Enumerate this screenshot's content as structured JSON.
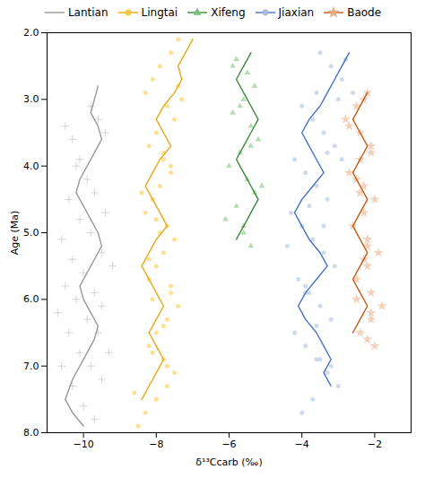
{
  "chart_data": {
    "type": "scatter",
    "xlabel": "δ¹³Ccarb (‰)",
    "ylabel": "Age (Ma)",
    "xlim": [
      -11.0,
      -1.0
    ],
    "ylim": [
      8.0,
      2.0
    ],
    "xticks": [
      -10,
      -8,
      -6,
      -4,
      -2
    ],
    "yticks": [
      2,
      3,
      4,
      5,
      6,
      7,
      8
    ],
    "grid": false,
    "legend": "top",
    "series": [
      {
        "name": "Lantian",
        "type": "scatter",
        "color": "#bbbbbb",
        "marker": "+",
        "x": [
          -10.5,
          -10.3,
          -10.1,
          -9.8,
          -9.6,
          -9.4,
          -10.2,
          -9.9,
          -9.7,
          -9.4,
          -10.4,
          -10.1,
          -9.8,
          -9.5,
          -9.2,
          -10.6,
          -10.3,
          -10.0,
          -9.7,
          -9.5,
          -10.5,
          -10.2,
          -9.9,
          -9.6,
          -9.3,
          -10.7,
          -10.4,
          -10.1,
          -9.8,
          -9.5,
          -10.6,
          -10.3,
          -10.0,
          -9.7
        ],
        "values": [
          3.4,
          3.6,
          3.9,
          3.1,
          3.3,
          3.5,
          4.0,
          4.2,
          4.4,
          4.7,
          4.5,
          4.8,
          5.0,
          5.3,
          5.5,
          5.1,
          5.4,
          5.6,
          5.9,
          6.1,
          5.8,
          6.0,
          6.3,
          6.5,
          6.8,
          6.2,
          6.5,
          6.8,
          7.0,
          7.2,
          7.0,
          7.3,
          7.6,
          7.8
        ]
      },
      {
        "name": "Lantian",
        "type": "line",
        "color": "#999999",
        "x": [
          -9.6,
          -9.7,
          -9.8,
          -9.6,
          -9.5,
          -9.7,
          -9.9,
          -10.1,
          -10.2,
          -10.0,
          -9.8,
          -9.6,
          -9.5,
          -9.7,
          -9.9,
          -10.1,
          -10.0,
          -9.8,
          -9.6,
          -9.7,
          -9.9,
          -10.1,
          -10.3,
          -10.5,
          -10.3,
          -10.0
        ],
        "values": [
          2.8,
          3.0,
          3.2,
          3.4,
          3.6,
          3.8,
          4.0,
          4.2,
          4.4,
          4.6,
          4.8,
          5.0,
          5.2,
          5.4,
          5.6,
          5.8,
          6.0,
          6.2,
          6.4,
          6.6,
          6.8,
          7.0,
          7.2,
          7.5,
          7.7,
          7.9
        ]
      },
      {
        "name": "Lingtai",
        "type": "scatter",
        "color": "#f5c842",
        "marker": "o",
        "x": [
          -7.4,
          -7.6,
          -7.9,
          -8.1,
          -8.3,
          -7.7,
          -7.5,
          -8.0,
          -8.2,
          -7.8,
          -7.6,
          -7.9,
          -8.1,
          -8.3,
          -7.7,
          -7.5,
          -7.8,
          -8.0,
          -8.2,
          -7.6,
          -7.4,
          -7.7,
          -8.0,
          -8.2,
          -7.8,
          -7.5,
          -7.7,
          -8.0,
          -8.3,
          -8.5,
          -7.3,
          -7.6,
          -7.9,
          -8.1,
          -7.7,
          -8.4,
          -8.2,
          -7.8,
          -8.6,
          -7.4,
          -7.8,
          -8.0,
          -7.6,
          -8.1
        ],
        "values": [
          2.1,
          2.3,
          2.5,
          2.7,
          2.9,
          3.1,
          3.3,
          3.5,
          3.7,
          3.9,
          4.1,
          4.3,
          4.5,
          4.7,
          4.9,
          5.1,
          5.3,
          5.5,
          5.7,
          5.9,
          6.1,
          6.3,
          6.5,
          6.7,
          6.9,
          7.1,
          7.3,
          7.5,
          7.7,
          7.9,
          3.0,
          4.0,
          5.0,
          6.0,
          7.0,
          4.4,
          5.4,
          6.4,
          7.4,
          2.8,
          3.8,
          4.8,
          5.8,
          6.8
        ]
      },
      {
        "name": "Lingtai",
        "type": "line",
        "color": "#e6a817",
        "x": [
          -7.0,
          -7.2,
          -7.4,
          -7.3,
          -7.5,
          -7.8,
          -8.0,
          -7.8,
          -7.6,
          -7.9,
          -8.1,
          -8.3,
          -8.1,
          -7.9,
          -7.7,
          -8.0,
          -8.2,
          -8.4,
          -8.2,
          -8.0,
          -7.8,
          -8.0,
          -8.2,
          -8.0,
          -7.8,
          -8.0,
          -8.2,
          -8.4
        ],
        "values": [
          2.1,
          2.3,
          2.5,
          2.7,
          2.9,
          3.1,
          3.3,
          3.5,
          3.7,
          3.9,
          4.1,
          4.3,
          4.5,
          4.7,
          4.9,
          5.1,
          5.3,
          5.5,
          5.7,
          5.9,
          6.1,
          6.3,
          6.5,
          6.7,
          6.9,
          7.1,
          7.3,
          7.5
        ]
      },
      {
        "name": "Xifeng",
        "type": "scatter",
        "color": "#7abf7a",
        "marker": "^",
        "x": [
          -5.8,
          -5.5,
          -5.3,
          -5.6,
          -5.9,
          -5.4,
          -5.2,
          -5.7,
          -6.0,
          -5.5,
          -5.3,
          -5.8,
          -6.1,
          -5.6,
          -5.4,
          -5.9,
          -5.7,
          -5.4,
          -5.1,
          -5.6
        ],
        "values": [
          2.4,
          2.6,
          2.8,
          3.0,
          3.2,
          3.4,
          3.6,
          3.8,
          4.0,
          4.2,
          4.4,
          4.6,
          4.8,
          5.0,
          5.2,
          2.5,
          3.1,
          3.7,
          4.3,
          4.9
        ]
      },
      {
        "name": "Xifeng",
        "type": "line",
        "color": "#3a8a3a",
        "x": [
          -5.4,
          -5.6,
          -5.8,
          -5.6,
          -5.4,
          -5.2,
          -5.4,
          -5.6,
          -5.8,
          -5.6,
          -5.4,
          -5.2,
          -5.4,
          -5.6,
          -5.8
        ],
        "values": [
          2.3,
          2.5,
          2.7,
          2.9,
          3.1,
          3.3,
          3.5,
          3.7,
          3.9,
          4.1,
          4.3,
          4.5,
          4.7,
          4.9,
          5.1
        ]
      },
      {
        "name": "Jiaxian",
        "type": "scatter",
        "color": "#aabbd8",
        "marker": "o",
        "x": [
          -3.5,
          -3.2,
          -2.9,
          -3.6,
          -4.0,
          -3.7,
          -3.4,
          -3.1,
          -4.2,
          -3.9,
          -3.6,
          -3.3,
          -4.3,
          -4.0,
          -3.7,
          -3.4,
          -3.1,
          -4.1,
          -3.8,
          -3.5,
          -3.2,
          -4.2,
          -3.9,
          -3.6,
          -3.3,
          -3.0,
          -3.7,
          -4.0,
          -2.8,
          -3.0,
          -3.3,
          -3.8,
          -4.4,
          -3.9,
          -3.6,
          -3.2,
          -2.6,
          -2.9,
          -3.4,
          -3.9,
          -3.5
        ],
        "values": [
          2.3,
          2.5,
          2.7,
          2.9,
          3.1,
          3.3,
          3.5,
          3.7,
          3.9,
          4.1,
          4.3,
          4.5,
          4.7,
          4.9,
          5.1,
          5.3,
          5.5,
          5.7,
          5.9,
          6.1,
          6.3,
          6.5,
          6.7,
          6.9,
          7.1,
          7.3,
          7.5,
          7.7,
          2.4,
          3.0,
          3.8,
          4.6,
          5.2,
          5.8,
          6.4,
          7.0,
          2.9,
          3.9,
          4.9,
          5.9,
          6.9
        ]
      },
      {
        "name": "Jiaxian",
        "type": "line",
        "color": "#4472c4",
        "x": [
          -2.7,
          -2.9,
          -3.1,
          -3.3,
          -3.5,
          -3.8,
          -4.0,
          -3.8,
          -3.6,
          -3.4,
          -3.7,
          -4.0,
          -4.2,
          -4.0,
          -3.8,
          -3.5,
          -3.3,
          -3.6,
          -3.9,
          -4.1,
          -3.9,
          -3.6,
          -3.4,
          -3.2,
          -3.4,
          -3.2
        ],
        "values": [
          2.3,
          2.5,
          2.7,
          2.9,
          3.1,
          3.3,
          3.5,
          3.7,
          3.9,
          4.1,
          4.3,
          4.5,
          4.7,
          4.9,
          5.1,
          5.3,
          5.5,
          5.7,
          5.9,
          6.1,
          6.3,
          6.5,
          6.7,
          6.9,
          7.1,
          7.3
        ]
      },
      {
        "name": "Baode",
        "type": "scatter",
        "color": "#e8aa80",
        "marker": "*",
        "x": [
          -2.2,
          -2.5,
          -2.8,
          -2.4,
          -2.1,
          -2.4,
          -2.7,
          -2.3,
          -2.0,
          -2.3,
          -2.6,
          -2.2,
          -1.9,
          -2.2,
          -2.5,
          -2.1,
          -1.8,
          -2.1,
          -2.4,
          -2.0,
          -2.3,
          -2.1,
          -2.4,
          -2.2,
          -2.5,
          -2.2,
          -2.7,
          -2.5,
          -2.3,
          -2.1
        ],
        "values": [
          2.9,
          3.1,
          3.3,
          3.5,
          3.7,
          3.9,
          4.1,
          4.3,
          4.5,
          4.7,
          4.9,
          5.1,
          5.3,
          5.5,
          5.7,
          5.9,
          6.1,
          6.3,
          6.5,
          6.7,
          3.0,
          3.8,
          4.4,
          5.2,
          6.0,
          6.6,
          3.4,
          4.2,
          5.4,
          6.2
        ]
      },
      {
        "name": "Baode",
        "type": "line",
        "color": "#c55a11",
        "x": [
          -2.2,
          -2.4,
          -2.6,
          -2.4,
          -2.2,
          -2.4,
          -2.6,
          -2.4,
          -2.2,
          -2.4,
          -2.6,
          -2.4,
          -2.2,
          -2.4,
          -2.6,
          -2.4,
          -2.2,
          -2.4,
          -2.6
        ],
        "values": [
          2.9,
          3.1,
          3.3,
          3.5,
          3.7,
          3.9,
          4.1,
          4.3,
          4.5,
          4.7,
          4.9,
          5.1,
          5.3,
          5.5,
          5.7,
          5.9,
          6.1,
          6.3,
          6.5
        ]
      }
    ]
  }
}
